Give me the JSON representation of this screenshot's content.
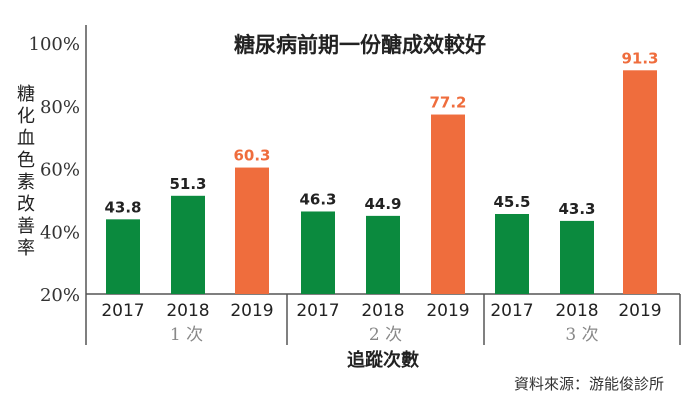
{
  "chart_data": {
    "type": "bar",
    "title": "糖尿病前期一份醣成效較好",
    "ylabel": "糖化血色素改善率",
    "xlabel": "追蹤次數",
    "source": "資料來源：游能俊診所",
    "ylim": [
      20,
      100
    ],
    "yticks": [
      "20%",
      "40%",
      "60%",
      "80%",
      "100%"
    ],
    "grid": false,
    "colors": {
      "earlier_years": "#0b8a3e",
      "latest_year": "#ef6d3d"
    },
    "groups": [
      {
        "label": "1 次",
        "categories": [
          "2017",
          "2018",
          "2019"
        ],
        "values": [
          43.8,
          51.3,
          60.3
        ],
        "labels": [
          "43.8",
          "51.3",
          "60.3"
        ]
      },
      {
        "label": "2 次",
        "categories": [
          "2017",
          "2018",
          "2019"
        ],
        "values": [
          46.3,
          44.9,
          77.2
        ],
        "labels": [
          "46.3",
          "44.9",
          "77.2"
        ]
      },
      {
        "label": "3 次",
        "categories": [
          "2017",
          "2018",
          "2019"
        ],
        "values": [
          45.5,
          43.3,
          91.3
        ],
        "labels": [
          "45.5",
          "43.3",
          "91.3"
        ]
      }
    ]
  }
}
